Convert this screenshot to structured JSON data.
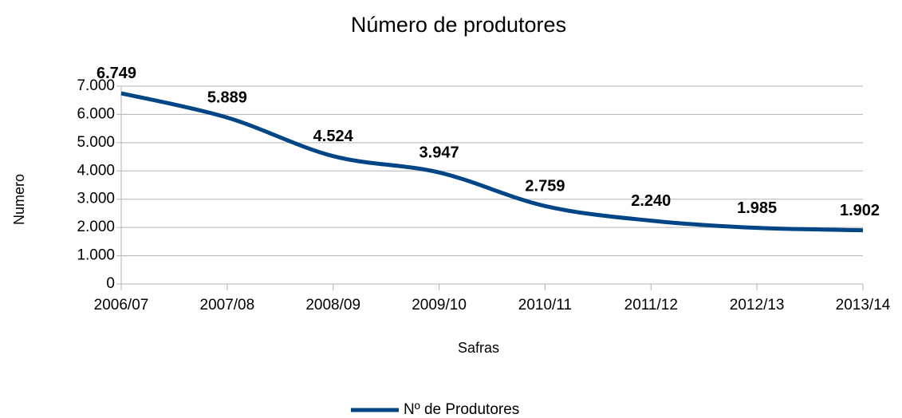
{
  "chart_data": {
    "type": "line",
    "title": "Número de produtores",
    "x_label": "Safras",
    "y_label": "Numero",
    "categories": [
      "2006/07",
      "2007/08",
      "2008/09",
      "2009/10",
      "2010/11",
      "2011/12",
      "2012/13",
      "2013/14"
    ],
    "series": [
      {
        "name": "Nº de Produtores",
        "color": "#004586",
        "values": [
          6749,
          5889,
          4524,
          3947,
          2759,
          2240,
          1985,
          1902
        ],
        "value_labels": [
          "6.749",
          "5.889",
          "4.524",
          "3.947",
          "2.759",
          "2.240",
          "1.985",
          "1.902"
        ]
      }
    ],
    "ylim": [
      0,
      7000
    ],
    "yticks": [
      {
        "value": 0,
        "label": "0"
      },
      {
        "value": 1000,
        "label": "1.000"
      },
      {
        "value": 2000,
        "label": "2.000"
      },
      {
        "value": 3000,
        "label": "3.000"
      },
      {
        "value": 4000,
        "label": "4.000"
      },
      {
        "value": 5000,
        "label": "5.000"
      },
      {
        "value": 6000,
        "label": "6.000"
      },
      {
        "value": 7000,
        "label": "7.000"
      }
    ],
    "grid": true,
    "smooth": true,
    "legend": "bottom"
  }
}
